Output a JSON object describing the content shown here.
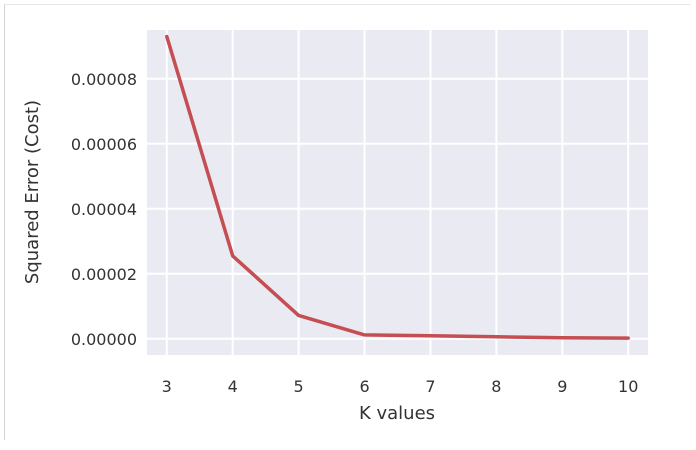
{
  "chart_data": {
    "type": "line",
    "title": "",
    "xlabel": "K values",
    "ylabel": "Squared Error (Cost)",
    "xlim": [
      2.7,
      10.3
    ],
    "ylim": [
      -5e-06,
      9.5e-05
    ],
    "x_ticks": [
      "3",
      "4",
      "5",
      "6",
      "7",
      "8",
      "9",
      "10"
    ],
    "y_ticks": [
      "0.00000",
      "0.00002",
      "0.00004",
      "0.00006",
      "0.00008"
    ],
    "series": [
      {
        "x": [
          3,
          4,
          5,
          6,
          7,
          8,
          9,
          10
        ],
        "values": [
          9.3e-05,
          2.55e-05,
          7.2e-06,
          1.2e-06,
          9e-07,
          6e-07,
          3e-07,
          2e-07
        ]
      }
    ],
    "grid": true,
    "colors": {
      "line": "#c44e52",
      "plot_bg": "#eaeaf2",
      "grid": "#ffffff"
    }
  }
}
